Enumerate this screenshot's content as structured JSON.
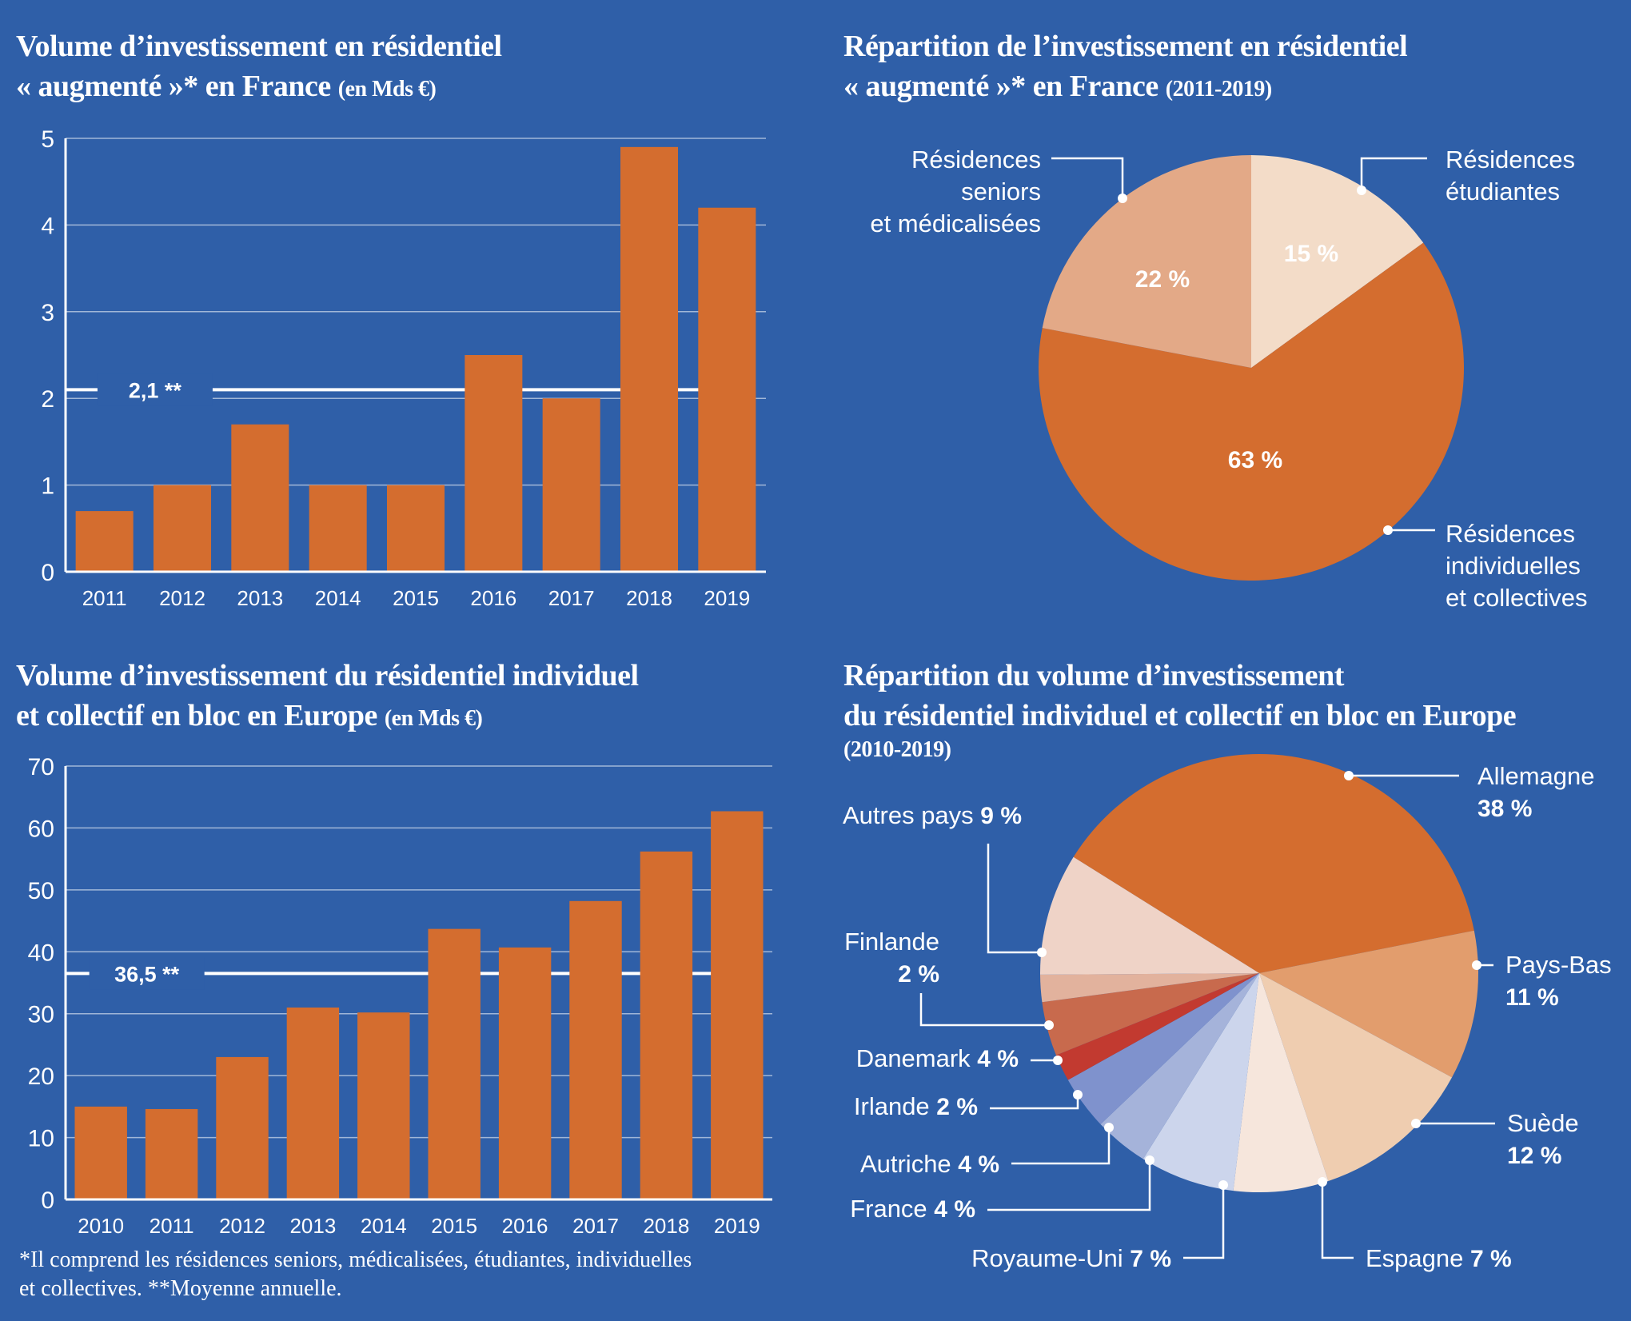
{
  "charts": {
    "france_volume": {
      "title": "Volume d’investissement en résidentiel",
      "title_line2": "« augmenté »* en France",
      "unit": "(en Mds €)"
    },
    "france_split": {
      "title": "Répartition de l’investissement en résidentiel",
      "title_line2": "« augmenté »* en France",
      "unit": "(2011-2019)"
    },
    "europe_volume": {
      "title": "Volume d’investissement du résidentiel individuel",
      "title_line2": "et collectif en bloc en Europe",
      "unit": "(en Mds €)"
    },
    "europe_split": {
      "title": "Répartition du volume d’investissement",
      "title_line2": "du résidentiel individuel et collectif en bloc en Europe",
      "unit": "(2010-2019)"
    }
  },
  "footnote": {
    "line1": "*Il comprend les résidences seniors, médicalisées, étudiantes, individuelles",
    "line2": "et collectives.  **Moyenne annuelle."
  },
  "colors": {
    "background": "#2f5fa8",
    "bar": "#d46d2f",
    "gridline": "#ffffff"
  },
  "chart_data": [
    {
      "type": "bar",
      "categories": [
        "2011",
        "2012",
        "2013",
        "2014",
        "2015",
        "2016",
        "2017",
        "2018",
        "2019"
      ],
      "values": [
        0.7,
        1.0,
        1.7,
        1.0,
        1.0,
        2.5,
        2.0,
        4.9,
        4.2
      ],
      "title": "Volume d’investissement en résidentiel « augmenté »* en France (en Mds €)",
      "ylim": [
        0,
        5
      ],
      "yticks": [
        0,
        1,
        2,
        3,
        4,
        5
      ],
      "grid": true,
      "reference_line": {
        "value": 2.1,
        "label": "2,1 **"
      }
    },
    {
      "type": "pie",
      "title": "Répartition de l’investissement en résidentiel « augmenté »* en France (2011-2019)",
      "slices": [
        {
          "label": "Résidences étudiantes",
          "value": 15,
          "value_label": "15 %",
          "color": "#f3dcc8"
        },
        {
          "label": "Résidences individuelles et collectives",
          "value": 63,
          "value_label": "63 %",
          "color": "#d46d2f"
        },
        {
          "label": "Résidences seniors et médicalisées",
          "value": 22,
          "value_label": "22 %",
          "color": "#e3a987"
        }
      ],
      "callouts": {
        "etudiantes": [
          "Résidences",
          "étudiantes"
        ],
        "individuelles": [
          "Résidences",
          "individuelles",
          "et collectives"
        ],
        "seniors": [
          "Résidences",
          "seniors",
          "et médicalisées"
        ]
      }
    },
    {
      "type": "bar",
      "categories": [
        "2010",
        "2011",
        "2012",
        "2013",
        "2014",
        "2015",
        "2016",
        "2017",
        "2018",
        "2019"
      ],
      "values": [
        15,
        14.6,
        23,
        31,
        30.2,
        43.7,
        40.7,
        48.2,
        56.2,
        62.7
      ],
      "title": "Volume d’investissement du résidentiel individuel et collectif en bloc en Europe (en Mds €)",
      "ylim": [
        0,
        70
      ],
      "yticks": [
        0,
        10,
        20,
        30,
        40,
        50,
        60,
        70
      ],
      "grid": true,
      "reference_line": {
        "value": 36.5,
        "label": "36,5 **"
      }
    },
    {
      "type": "pie",
      "title": "Répartition du volume d’investissement du résidentiel individuel et collectif en bloc en Europe (2010-2019)",
      "slices": [
        {
          "label": "Allemagne",
          "value": 38,
          "value_label": "38 %",
          "color": "#d46d2f"
        },
        {
          "label": "Pays-Bas",
          "value": 11,
          "value_label": "11 %",
          "color": "#e29d6d"
        },
        {
          "label": "Suède",
          "value": 12,
          "value_label": "12 %",
          "color": "#efcdb0"
        },
        {
          "label": "Espagne",
          "value": 7,
          "value_label": "7 %",
          "color": "#f6e6dc"
        },
        {
          "label": "Royaume-Uni",
          "value": 7,
          "value_label": "7 %",
          "color": "#ccd5ec"
        },
        {
          "label": "France",
          "value": 4,
          "value_label": "4 %",
          "color": "#a5b3da"
        },
        {
          "label": "Autriche",
          "value": 4,
          "value_label": "4 %",
          "color": "#7f92cd"
        },
        {
          "label": "Irlande",
          "value": 2,
          "value_label": "2 %",
          "color": "#c23a30"
        },
        {
          "label": "Danemark",
          "value": 4,
          "value_label": "4 %",
          "color": "#c86a4d"
        },
        {
          "label": "Finlande",
          "value": 2,
          "value_label": "2 %",
          "color": "#e2b29d"
        },
        {
          "label": "Autres pays",
          "value": 9,
          "value_label": "9 %",
          "color": "#efd3c7"
        }
      ]
    }
  ]
}
